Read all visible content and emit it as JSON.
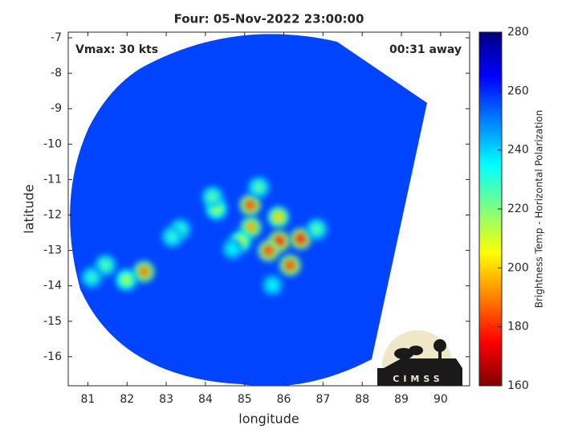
{
  "chart_data": {
    "type": "swath-map",
    "title": "Four: 05-Nov-2022 23:00:00",
    "annotations": [
      "Vmax: 30 kts",
      "00:31 away"
    ],
    "logo": "CIMSS",
    "xlabel": "longitude",
    "ylabel": "latitude",
    "xlim": [
      80.5,
      90.74
    ],
    "ylim": [
      -16.82,
      -6.84
    ],
    "xticks": [
      81,
      82,
      83,
      84,
      85,
      86,
      87,
      88,
      89,
      90
    ],
    "yticks": [
      -7,
      -8,
      -9,
      -10,
      -11,
      -12,
      -13,
      -14,
      -15,
      -16
    ],
    "colorbar_label": "Brightness Temp - Horizontal Polarization",
    "clim": [
      160,
      280
    ],
    "colorbar_ticks": [
      160,
      180,
      200,
      220,
      240,
      260,
      280
    ],
    "colormap": "jet-reversed",
    "background_value": 257,
    "cells": [
      {
        "lon": 85.14,
        "lat": -11.72,
        "value": 185
      },
      {
        "lon": 84.28,
        "lat": -11.83,
        "value": 215
      },
      {
        "lon": 84.18,
        "lat": -11.49,
        "value": 225
      },
      {
        "lon": 85.86,
        "lat": -12.06,
        "value": 200
      },
      {
        "lon": 85.16,
        "lat": -12.35,
        "value": 195
      },
      {
        "lon": 84.9,
        "lat": -12.74,
        "value": 210
      },
      {
        "lon": 85.88,
        "lat": -12.74,
        "value": 180
      },
      {
        "lon": 86.43,
        "lat": -12.67,
        "value": 180
      },
      {
        "lon": 85.61,
        "lat": -13.01,
        "value": 185
      },
      {
        "lon": 86.16,
        "lat": -13.42,
        "value": 185
      },
      {
        "lon": 85.36,
        "lat": -11.22,
        "value": 225
      },
      {
        "lon": 82.43,
        "lat": -13.6,
        "value": 190
      },
      {
        "lon": 81.98,
        "lat": -13.83,
        "value": 215
      },
      {
        "lon": 81.45,
        "lat": -13.42,
        "value": 225
      },
      {
        "lon": 83.36,
        "lat": -12.4,
        "value": 230
      },
      {
        "lon": 83.15,
        "lat": -12.62,
        "value": 230
      },
      {
        "lon": 86.84,
        "lat": -12.4,
        "value": 225
      },
      {
        "lon": 84.69,
        "lat": -12.96,
        "value": 235
      },
      {
        "lon": 81.1,
        "lat": -13.76,
        "value": 230
      },
      {
        "lon": 85.71,
        "lat": -13.98,
        "value": 235
      }
    ]
  }
}
